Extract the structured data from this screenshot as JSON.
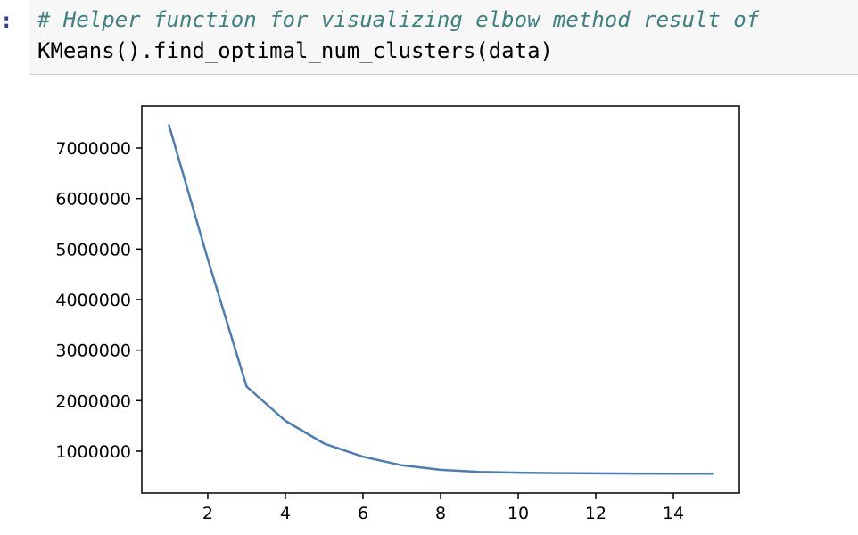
{
  "cell": {
    "prompt": ":",
    "code_lines": [
      "# Helper function for visualizing elbow method result of",
      "KMeans().find_optimal_num_clusters(data)"
    ]
  },
  "chart_data": {
    "type": "line",
    "title": "",
    "xlabel": "",
    "ylabel": "",
    "x": [
      1,
      2,
      3,
      4,
      5,
      6,
      7,
      8,
      9,
      10,
      11,
      12,
      13,
      14,
      15
    ],
    "series": [
      {
        "values": [
          7450000,
          4800000,
          2280000,
          1600000,
          1150000,
          890000,
          720000,
          630000,
          590000,
          575000,
          565000,
          560000,
          557000,
          555000,
          553000
        ],
        "color": "#4a7db5"
      }
    ],
    "xlim": [
      0.3,
      15.7
    ],
    "ylim": [
      170000,
      7830000
    ],
    "xticks": [
      2,
      4,
      6,
      8,
      10,
      12,
      14
    ],
    "yticks": [
      1000000,
      2000000,
      3000000,
      4000000,
      5000000,
      6000000,
      7000000
    ],
    "xtick_labels": [
      "2",
      "4",
      "6",
      "8",
      "10",
      "12",
      "14"
    ],
    "ytick_labels": [
      "1000000",
      "2000000",
      "3000000",
      "4000000",
      "5000000",
      "6000000",
      "7000000"
    ],
    "grid": false,
    "legend": "none"
  }
}
